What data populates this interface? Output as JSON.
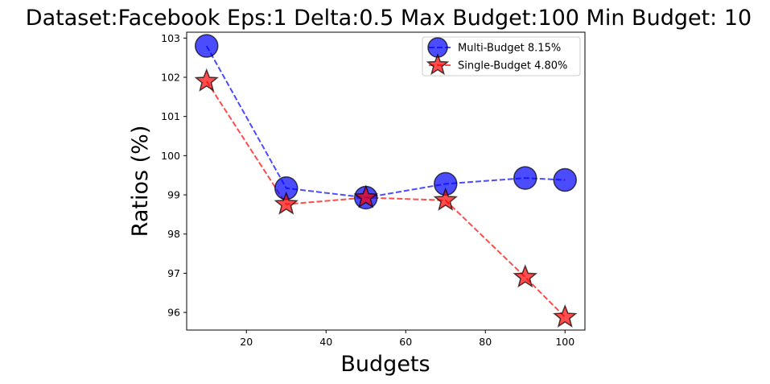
{
  "chart_data": {
    "type": "line",
    "title": "Dataset:Facebook Eps:1 Delta:0.5 Max Budget:100 Min Budget: 10",
    "xlabel": "Budgets",
    "ylabel": "Ratios (%)",
    "xlim": [
      5,
      105
    ],
    "ylim": [
      95.55,
      103.15
    ],
    "xticks": [
      20,
      40,
      60,
      80,
      100
    ],
    "yticks": [
      96,
      97,
      98,
      99,
      100,
      101,
      102,
      103
    ],
    "legend_position": "top-right",
    "grid": false,
    "series": [
      {
        "name": "Multi-Budget 8.15%",
        "color": "#0000ff",
        "marker": "circle",
        "line_style": "dashed",
        "x": [
          10,
          30,
          50,
          70,
          90,
          100
        ],
        "y": [
          102.8,
          99.17,
          98.93,
          99.28,
          99.43,
          99.38
        ]
      },
      {
        "name": "Single-Budget 4.80%",
        "color": "#ff0000",
        "marker": "star",
        "line_style": "dashed",
        "x": [
          10,
          30,
          50,
          70,
          90,
          100
        ],
        "y": [
          101.9,
          98.76,
          98.93,
          98.86,
          96.9,
          95.88
        ]
      }
    ]
  }
}
